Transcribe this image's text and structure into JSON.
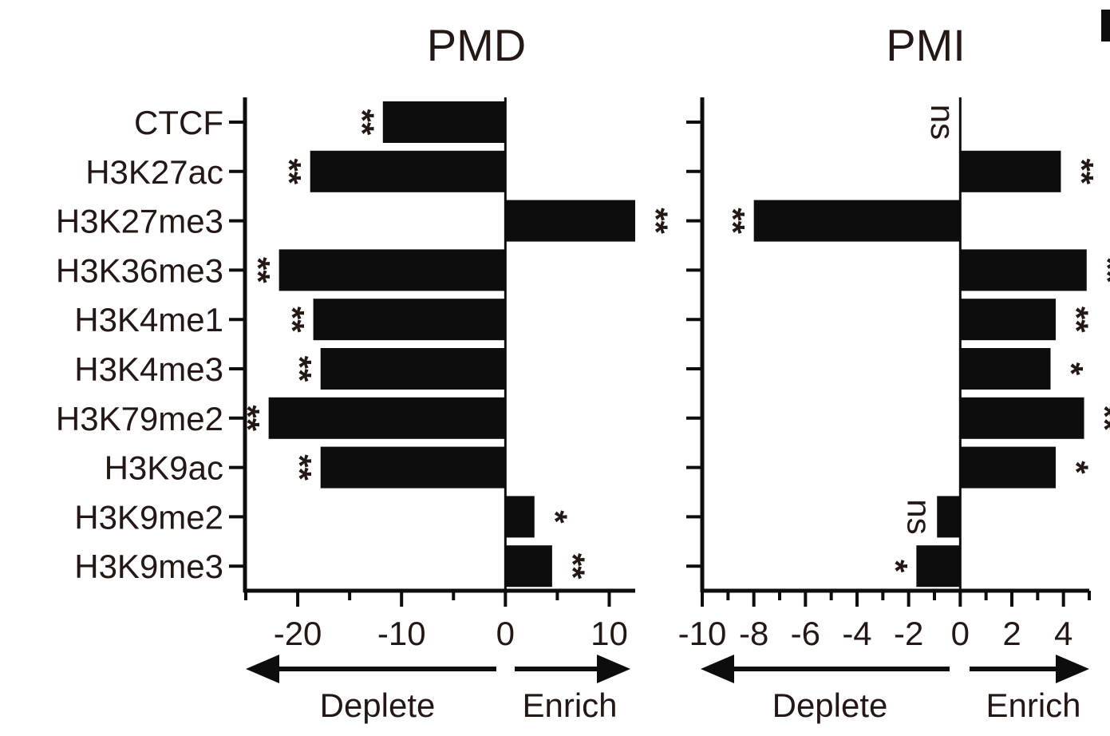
{
  "chart_data": [
    {
      "type": "bar",
      "orientation": "horizontal",
      "title": "PMD",
      "categories": [
        "CTCF",
        "H3K27ac",
        "H3K27me3",
        "H3K36me3",
        "H3K4me1",
        "H3K4me3",
        "H3K79me2",
        "H3K9ac",
        "H3K9me2",
        "H3K9me3"
      ],
      "values": [
        -11.8,
        -18.8,
        12.5,
        -21.8,
        -18.5,
        -17.8,
        -22.8,
        -17.8,
        2.8,
        4.5
      ],
      "significance": [
        "**",
        "**",
        "**",
        "**",
        "**",
        "**",
        "**",
        "**",
        "*",
        "**"
      ],
      "xlim": [
        -25,
        12.5
      ],
      "xticks": [
        -20,
        -10,
        0,
        10
      ],
      "xtick_labels": [
        "-20",
        "-10",
        "0",
        "10"
      ],
      "show_category_labels": true,
      "left_direction": "Deplete",
      "right_direction": "Enrich",
      "grid": false
    },
    {
      "type": "bar",
      "orientation": "horizontal",
      "title": "PMI",
      "categories": [
        "CTCF",
        "H3K27ac",
        "H3K27me3",
        "H3K36me3",
        "H3K4me1",
        "H3K4me3",
        "H3K79me2",
        "H3K9ac",
        "H3K9me2",
        "H3K9me3"
      ],
      "values": [
        0,
        3.9,
        -8.0,
        4.9,
        3.7,
        3.5,
        4.8,
        3.7,
        -0.9,
        -1.7
      ],
      "significance": [
        "ns",
        "**",
        "**",
        "**",
        "**",
        "*",
        "**",
        "*",
        "ns",
        "*"
      ],
      "xlim": [
        -10,
        5
      ],
      "xticks": [
        -10,
        -8,
        -6,
        -4,
        -2,
        0,
        2,
        4
      ],
      "xtick_labels": [
        "-10",
        "-8",
        "-6",
        "-4",
        "-2",
        "0",
        "2",
        "4"
      ],
      "show_category_labels": false,
      "left_direction": "Deplete",
      "right_direction": "Enrich",
      "grid": false
    }
  ],
  "colors": {
    "bar": "#0d0d0d",
    "axis": "#0d0d0d",
    "text": "#231815"
  }
}
